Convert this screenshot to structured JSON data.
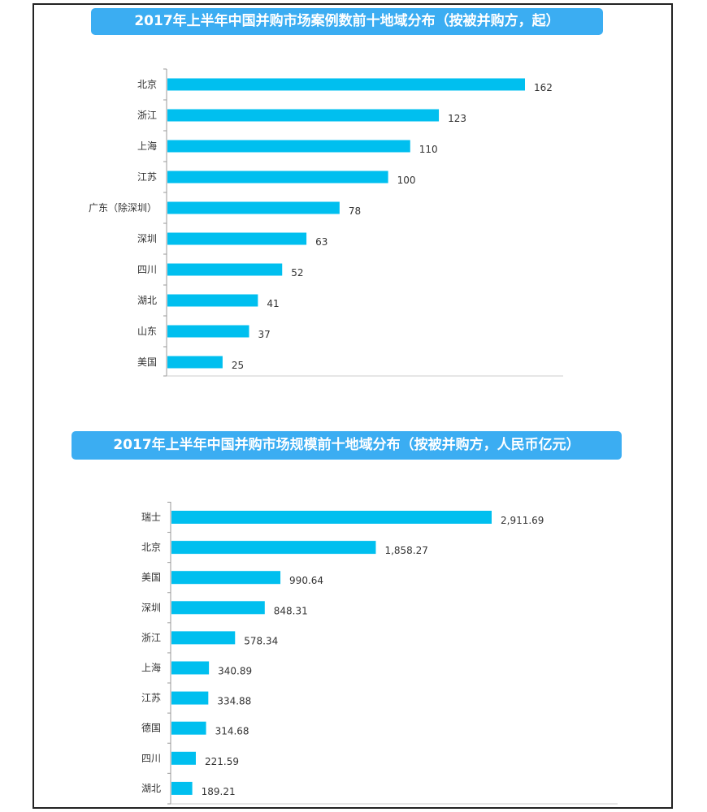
{
  "chart_data": [
    {
      "type": "bar",
      "orientation": "horizontal",
      "title": "2017年上半年中国并购市场案例数前十地域分布（按被并购方，起）",
      "categories": [
        "北京",
        "浙江",
        "上海",
        "江苏",
        "广东（除深圳）",
        "深圳",
        "四川",
        "湖北",
        "山东",
        "美国"
      ],
      "values": [
        162,
        123,
        110,
        100,
        78,
        63,
        52,
        41,
        37,
        25
      ],
      "value_labels": [
        "162",
        "123",
        "110",
        "100",
        "78",
        "63",
        "52",
        "41",
        "37",
        "25"
      ],
      "xlim": [
        0,
        180
      ],
      "color": "#00bfef"
    },
    {
      "type": "bar",
      "orientation": "horizontal",
      "title": "2017年上半年中国并购市场规模前十地域分布（按被并购方，人民币亿元）",
      "categories": [
        "瑞士",
        "北京",
        "美国",
        "深圳",
        "浙江",
        "上海",
        "江苏",
        "德国",
        "四川",
        "湖北"
      ],
      "values": [
        2911.69,
        1858.27,
        990.64,
        848.31,
        578.34,
        340.89,
        334.88,
        314.68,
        221.59,
        189.21
      ],
      "value_labels": [
        "2,911.69",
        "1,858.27",
        "990.64",
        "848.31",
        "578.34",
        "340.89",
        "334.88",
        "314.68",
        "221.59",
        "189.21"
      ],
      "xlim": [
        0,
        3200
      ],
      "color": "#00bfef"
    }
  ]
}
